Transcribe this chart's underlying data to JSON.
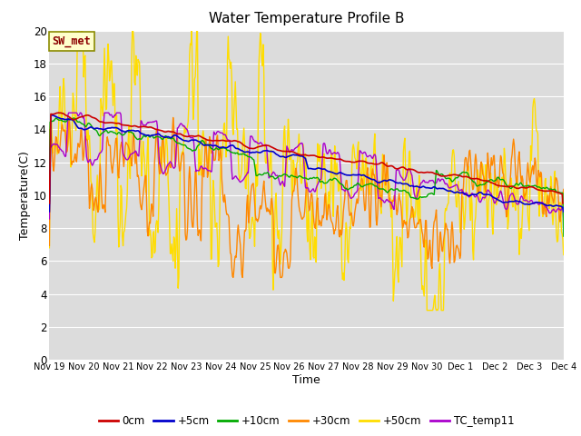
{
  "title": "Water Temperature Profile B",
  "xlabel": "Time",
  "ylabel": "Temperature(C)",
  "ylim": [
    0,
    20
  ],
  "yticks": [
    0,
    2,
    4,
    6,
    8,
    10,
    12,
    14,
    16,
    18,
    20
  ],
  "background_color": "#dcdcdc",
  "fig_background": "#ffffff",
  "sw_met_label": "SW_met",
  "series_colors": {
    "0cm": "#cc0000",
    "+5cm": "#0000cc",
    "+10cm": "#00aa00",
    "+30cm": "#ff8800",
    "+50cm": "#ffdd00",
    "TC_temp11": "#aa00cc"
  },
  "x_tick_labels": [
    "Nov 19",
    "Nov 20",
    "Nov 21",
    "Nov 22",
    "Nov 23",
    "Nov 24",
    "Nov 25",
    "Nov 26",
    "Nov 27",
    "Nov 28",
    "Nov 29",
    "Nov 30",
    "Dec 1",
    "Dec 2",
    "Dec 3",
    "Dec 4"
  ],
  "n_points": 720,
  "grid_color": "#ffffff"
}
